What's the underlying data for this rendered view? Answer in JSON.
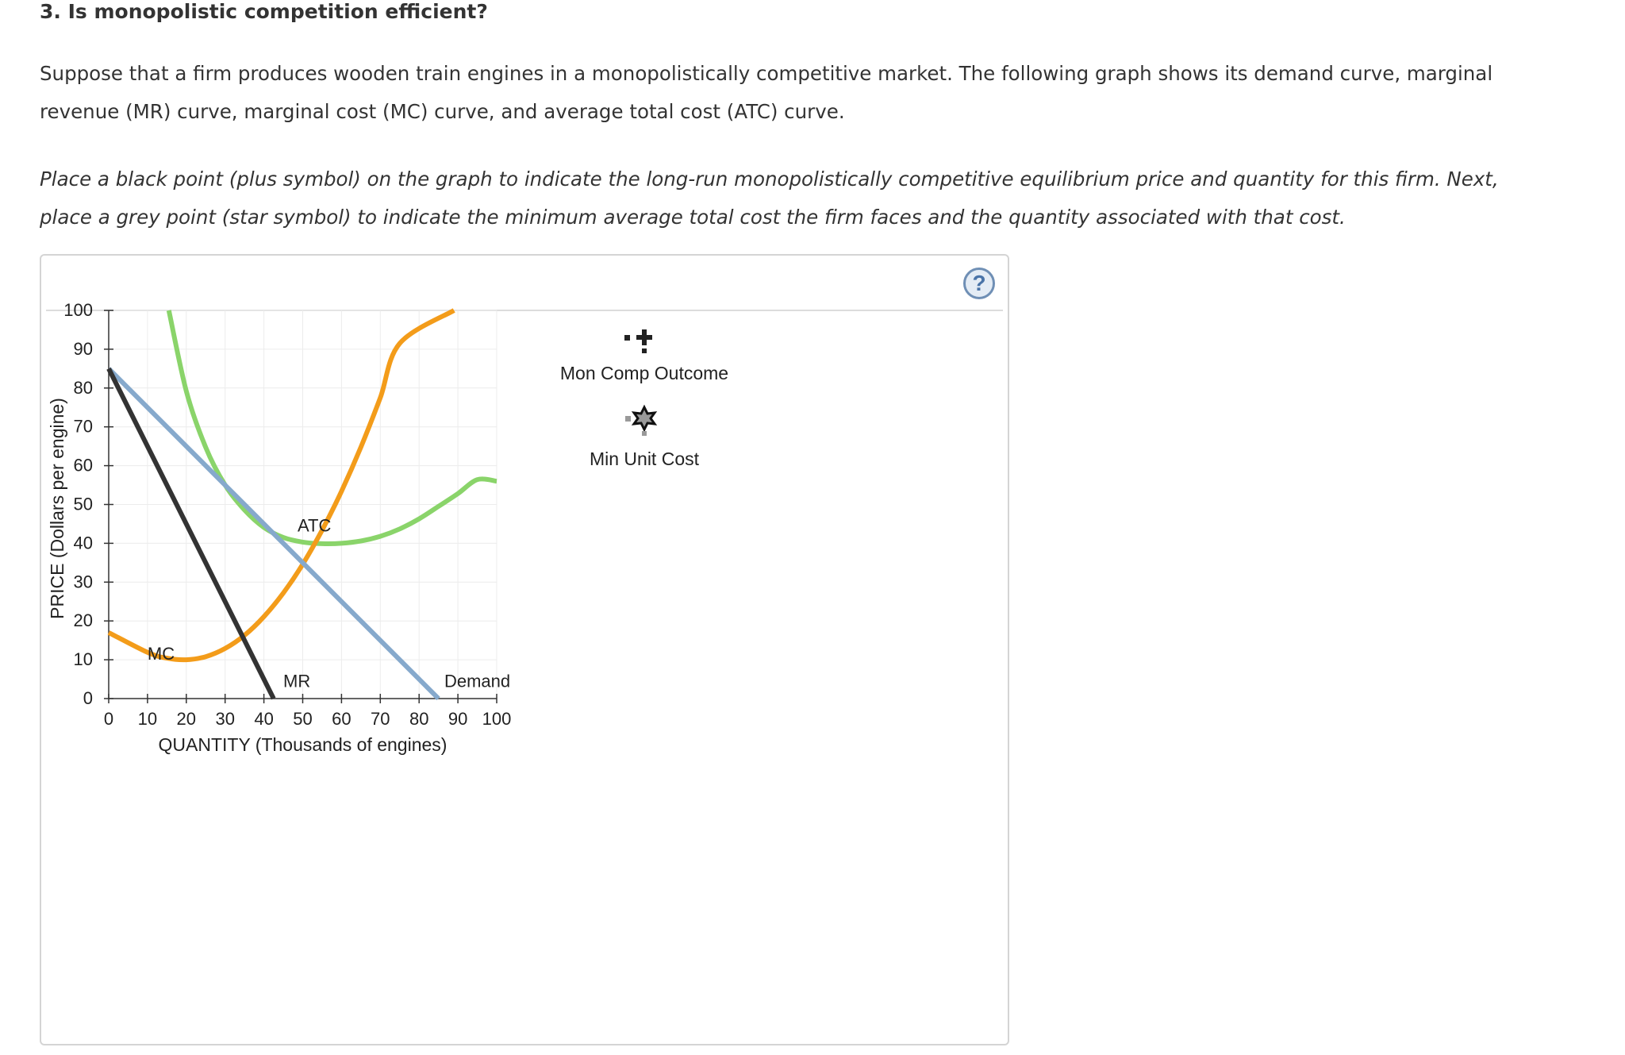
{
  "question": {
    "title": "3. Is monopolistic competition efficient?",
    "paragraph1": "Suppose that a firm produces wooden train engines in a monopolistically competitive market. The following graph shows its demand curve, marginal revenue (MR) curve, marginal cost (MC) curve, and average total cost (ATC) curve.",
    "paragraph2": "Place a black point (plus symbol) on the graph to indicate the long-run monopolistically competitive equilibrium price and quantity for this firm. Next, place a grey point (star symbol) to indicate the minimum average total cost the firm faces and the quantity associated with that cost."
  },
  "panel": {
    "help_icon": "question-mark-icon",
    "help_label": "?"
  },
  "colors": {
    "demand": "#86a9cc",
    "mr": "#333333",
    "mc": "#f39c1a",
    "atc": "#8ad46a",
    "grid": "#ececec"
  },
  "legend": [
    {
      "label": "Mon Comp Outcome",
      "icon": "black-plus-icon"
    },
    {
      "label": "Min Unit Cost",
      "icon": "grey-star-icon"
    }
  ],
  "chart_data": {
    "type": "line",
    "xlabel": "QUANTITY (Thousands of engines)",
    "ylabel": "PRICE (Dollars per engine)",
    "xlim": [
      0,
      100
    ],
    "ylim": [
      0,
      100
    ],
    "xticks": [
      "0",
      "10",
      "20",
      "30",
      "40",
      "50",
      "60",
      "70",
      "80",
      "90",
      "100"
    ],
    "yticks": [
      "0",
      "10",
      "20",
      "30",
      "40",
      "50",
      "60",
      "70",
      "80",
      "90",
      "100"
    ],
    "grid": true,
    "series": [
      {
        "name": "Demand",
        "color": "#86a9cc",
        "points": [
          [
            0,
            85
          ],
          [
            85,
            0
          ]
        ]
      },
      {
        "name": "MR",
        "color": "#333333",
        "points": [
          [
            0,
            85
          ],
          [
            42.5,
            0
          ]
        ]
      },
      {
        "name": "MC",
        "color": "#f39c1a",
        "points": [
          [
            0,
            17
          ],
          [
            10,
            11.9
          ],
          [
            15,
            10.4
          ],
          [
            20,
            10
          ],
          [
            25,
            10.8
          ],
          [
            30,
            12.9
          ],
          [
            35,
            16.3
          ],
          [
            40,
            21.1
          ],
          [
            45,
            27.2
          ],
          [
            50,
            34.6
          ],
          [
            55,
            43.4
          ],
          [
            60,
            53.4
          ],
          [
            65,
            64.8
          ],
          [
            70,
            77.5
          ],
          [
            75,
            91.5
          ],
          [
            89,
            100
          ]
        ]
      },
      {
        "name": "ATC",
        "color": "#8ad46a",
        "points": [
          [
            15.5,
            100
          ],
          [
            20,
            79.2
          ],
          [
            25,
            64.7
          ],
          [
            30,
            55
          ],
          [
            35,
            48.6
          ],
          [
            40,
            44.1
          ],
          [
            45,
            41.5
          ],
          [
            50,
            40.3
          ],
          [
            55,
            39.9
          ],
          [
            60,
            40
          ],
          [
            65,
            40.6
          ],
          [
            70,
            41.8
          ],
          [
            75,
            43.7
          ],
          [
            80,
            46.3
          ],
          [
            85,
            49.5
          ],
          [
            90,
            52.8
          ],
          [
            95,
            56.4
          ],
          [
            100,
            56
          ]
        ]
      }
    ],
    "curve_labels": [
      {
        "text": "ATC",
        "x": 53,
        "y": 43
      },
      {
        "text": "MC",
        "x": 13.5,
        "y": 10
      },
      {
        "text": "MR",
        "x": 48.5,
        "y": 3
      },
      {
        "text": "Demand",
        "x": 95,
        "y": 3
      }
    ]
  }
}
